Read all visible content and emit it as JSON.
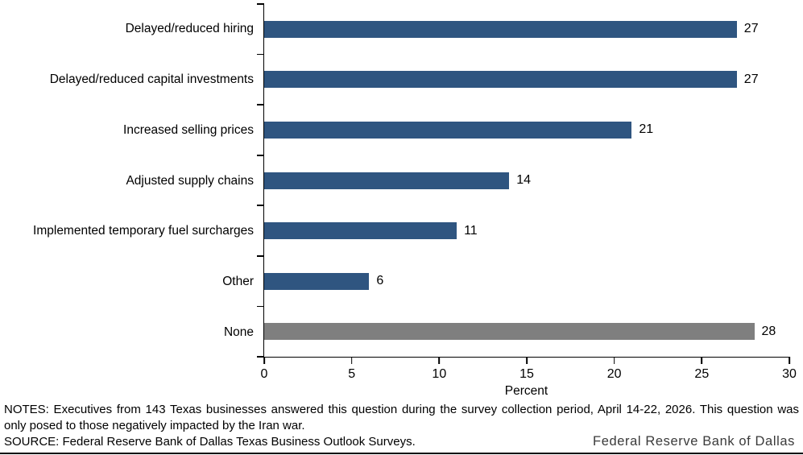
{
  "chart_data": {
    "type": "bar",
    "orientation": "horizontal",
    "title": "",
    "categories": [
      "Delayed/reduced hiring",
      "Delayed/reduced capital investments",
      "Increased selling prices",
      "Adjusted supply chains",
      "Implemented temporary fuel surcharges",
      "Other",
      "None"
    ],
    "values": [
      27,
      27,
      21,
      14,
      11,
      6,
      28
    ],
    "value_labels": [
      "27",
      "27",
      "21",
      "14",
      "11",
      "6",
      "28"
    ],
    "colors": [
      "#2F5580",
      "#2F5580",
      "#2F5580",
      "#2F5580",
      "#2F5580",
      "#2F5580",
      "#7F7F7F"
    ],
    "bar_color_primary": "#2F5580",
    "bar_color_none": "#7F7F7F",
    "xlabel": "Percent",
    "xlim": [
      0,
      30
    ],
    "xticks": [
      0,
      5,
      10,
      15,
      20,
      25,
      30
    ],
    "grid": false,
    "legend": "none"
  },
  "notes": {
    "notes_text": "NOTES: Executives from 143 Texas businesses answered this question during the survey collection period, April 14-22, 2026. This question was only posed to those negatively impacted by the Iran war.",
    "source_text": "SOURCE: Federal Reserve Bank of Dallas Texas Business Outlook Surveys."
  },
  "footer": {
    "brand": "Federal Reserve Bank of Dallas"
  }
}
